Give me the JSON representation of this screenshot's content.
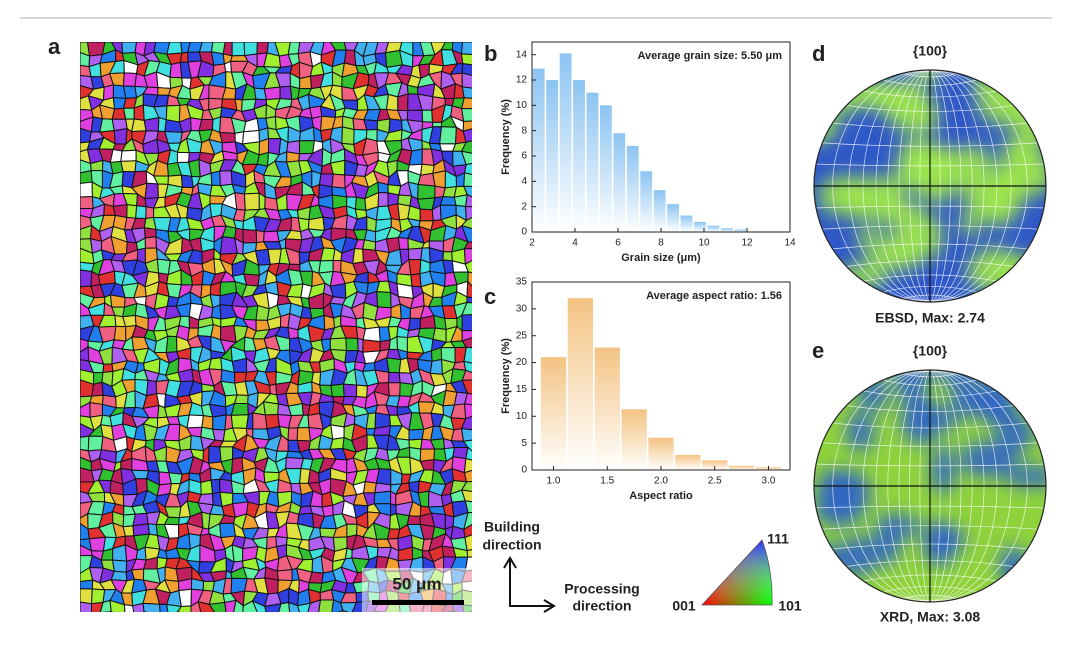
{
  "panel_labels": [
    "a",
    "b",
    "c",
    "d",
    "e"
  ],
  "scale_bar": "50 μm",
  "building_direction": [
    "Building",
    "direction"
  ],
  "processing_direction": [
    "Processing",
    "direction"
  ],
  "ipf_labels": {
    "v001": "001",
    "v101": "101",
    "v111": "111"
  },
  "pole_figures": [
    {
      "title": "{100}",
      "caption": "EBSD, Max: 2.74"
    },
    {
      "title": "{100}",
      "caption": "XRD, Max: 3.08"
    }
  ],
  "chart_data": [
    {
      "type": "histogram",
      "annotation": "Average grain size: 5.50 μm",
      "x_label": "Grain size (μm)",
      "y_label": "Frequency (%)",
      "color": "#8cc4f2",
      "bins": [
        2,
        2.625,
        3.25,
        3.875,
        4.5,
        5.125,
        5.75,
        6.375,
        7,
        7.625,
        8.25,
        8.875,
        9.5,
        10.125,
        10.75,
        11.375,
        12
      ],
      "values": [
        12.9,
        12.0,
        14.1,
        12.0,
        11.0,
        10.0,
        7.8,
        6.8,
        4.8,
        3.3,
        2.2,
        1.3,
        0.8,
        0.5,
        0.3,
        0.2
      ],
      "xlim": [
        2,
        14
      ],
      "xticks": [
        2,
        4,
        6,
        8,
        10,
        12,
        14
      ],
      "ylim": [
        0,
        15
      ],
      "yticks": [
        0,
        2,
        4,
        6,
        8,
        10,
        12,
        14
      ]
    },
    {
      "type": "histogram",
      "annotation": "Average aspect ratio: 1.56",
      "x_label": "Aspect ratio",
      "y_label": "Frequency (%)",
      "color": "#f3c382",
      "bins": [
        0.875,
        1.125,
        1.375,
        1.625,
        1.875,
        2.125,
        2.375,
        2.625,
        2.875,
        3.125
      ],
      "values": [
        21,
        32,
        22.8,
        11.3,
        6,
        2.8,
        1.8,
        0.8,
        0.5
      ],
      "xlim": [
        0.8,
        3.2
      ],
      "xticks": [
        {
          "value": 1,
          "label": "1.0"
        },
        1.5,
        {
          "value": 2,
          "label": "2.0"
        },
        2.5,
        {
          "value": 3,
          "label": "3.0"
        }
      ],
      "ylim": [
        0,
        35
      ],
      "yticks": [
        0,
        5,
        10,
        15,
        20,
        25,
        30,
        35
      ]
    }
  ]
}
